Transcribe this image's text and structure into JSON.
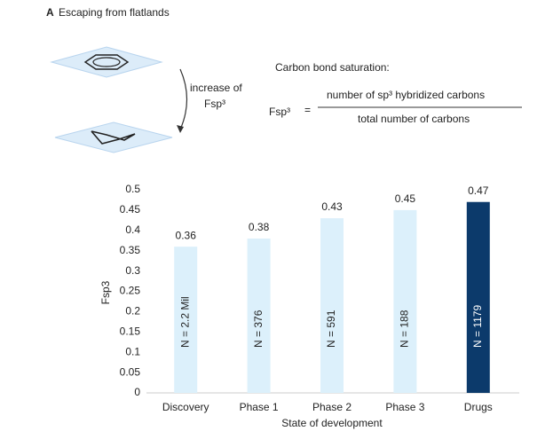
{
  "header": {
    "panel": "A",
    "title": "Escaping from flatlands"
  },
  "diagram": {
    "arrow_label": [
      "increase of",
      "Fsp³"
    ],
    "heading": "Carbon bond saturation:",
    "formula_lhs": "Fsp³",
    "equals": "=",
    "numerator": "number of sp³ hybridized carbons",
    "denominator": "total number of carbons"
  },
  "chart_data": {
    "type": "bar",
    "x_label": "State of development",
    "y_label": "Fsp3",
    "categories": [
      "Discovery",
      "Phase 1",
      "Phase 2",
      "Phase 3",
      "Drugs"
    ],
    "values": [
      0.36,
      0.38,
      0.43,
      0.45,
      0.47
    ],
    "annotations": [
      "N = 2.2 Mil",
      "N = 376",
      "N = 591",
      "N = 188",
      "N = 1179"
    ],
    "colors": [
      "#dcf0fb",
      "#dcf0fb",
      "#dcf0fb",
      "#dcf0fb",
      "#0c3a6b"
    ],
    "ylim": [
      0,
      0.5
    ],
    "yticks": [
      0,
      0.05,
      0.1,
      0.15,
      0.2,
      0.25,
      0.3,
      0.35,
      0.4,
      0.45,
      0.5
    ],
    "grid": false
  }
}
